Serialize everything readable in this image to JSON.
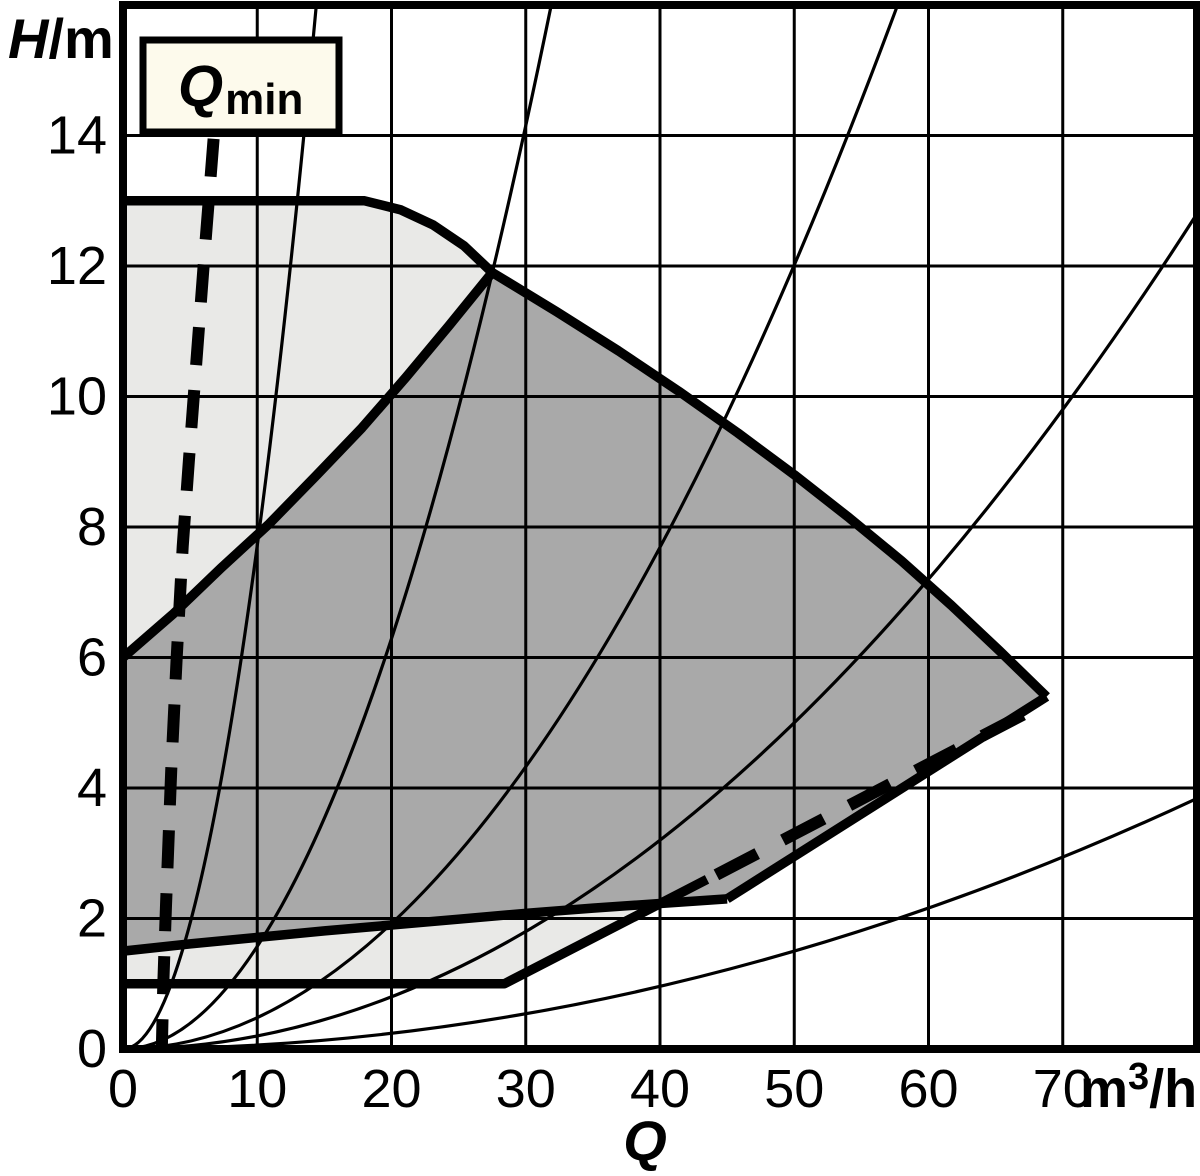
{
  "chart_data": {
    "type": "area",
    "title": "Pump duty chart (head H versus flow Q) with permitted operating regions, Qmin limit line and system curves",
    "labels": {
      "y_main": "H",
      "y_rest": "/m",
      "x": "Q",
      "unit_m": "m",
      "unit_sup": "3",
      "unit_rest": "/h",
      "qmin_main": "Q",
      "qmin_sub": "min"
    },
    "xlim": [
      0,
      80
    ],
    "ylim": [
      0,
      16
    ],
    "x_ticks": [
      0,
      10,
      20,
      30,
      40,
      50,
      60,
      70
    ],
    "y_ticks": [
      0,
      2,
      4,
      6,
      8,
      10,
      12,
      14
    ],
    "grid": "on",
    "colors": {
      "light_region": "#e9e9e7",
      "dark_region": "#a9a9a9",
      "line": "#000000",
      "qmin_box_fill": "#fdfaec",
      "background": "#ffffff"
    },
    "regions": [
      {
        "name": "upper-light-region",
        "fill": "light_region",
        "points": [
          [
            0,
            13
          ],
          [
            18,
            13
          ],
          [
            20.7,
            12.86
          ],
          [
            23.1,
            12.63
          ],
          [
            25.4,
            12.31
          ],
          [
            27.5,
            11.9
          ],
          [
            24.3,
            11.09
          ],
          [
            21.1,
            10.3
          ],
          [
            17.8,
            9.52
          ],
          [
            14.4,
            8.79
          ],
          [
            10.9,
            8.05
          ],
          [
            7.3,
            7.37
          ],
          [
            3.7,
            6.66
          ],
          [
            0,
            6.0
          ]
        ]
      },
      {
        "name": "dark-region",
        "fill": "dark_region",
        "points": [
          [
            0,
            6.0
          ],
          [
            3.7,
            6.66
          ],
          [
            7.3,
            7.37
          ],
          [
            10.9,
            8.05
          ],
          [
            14.4,
            8.79
          ],
          [
            17.8,
            9.52
          ],
          [
            21.1,
            10.3
          ],
          [
            24.3,
            11.09
          ],
          [
            27.5,
            11.9
          ],
          [
            32.3,
            11.3
          ],
          [
            36.9,
            10.7
          ],
          [
            41.4,
            10.08
          ],
          [
            45.8,
            9.44
          ],
          [
            50,
            8.8
          ],
          [
            54.1,
            8.14
          ],
          [
            58,
            7.48
          ],
          [
            61.7,
            6.8
          ],
          [
            65.3,
            6.1
          ],
          [
            68.8,
            5.4
          ],
          [
            45,
            2.3
          ],
          [
            40,
            2.23
          ],
          [
            35,
            2.16
          ],
          [
            30,
            2.08
          ],
          [
            25,
            1.99
          ],
          [
            20,
            1.9
          ],
          [
            15,
            1.81
          ],
          [
            10,
            1.71
          ],
          [
            5,
            1.61
          ],
          [
            0,
            1.5
          ]
        ]
      },
      {
        "name": "lower-light-strip",
        "fill": "light_region",
        "points": [
          [
            0,
            1.5
          ],
          [
            5,
            1.61
          ],
          [
            10,
            1.71
          ],
          [
            15,
            1.81
          ],
          [
            20,
            1.9
          ],
          [
            25,
            1.99
          ],
          [
            30,
            2.08
          ],
          [
            35,
            2.16
          ],
          [
            39.8,
            2.22
          ],
          [
            28.4,
            1
          ],
          [
            0,
            1
          ]
        ]
      }
    ],
    "boundaries": [
      {
        "name": "upper-envelope-top",
        "width": 9.5,
        "points": [
          [
            0,
            13
          ],
          [
            18,
            13
          ],
          [
            20.7,
            12.86
          ],
          [
            23.1,
            12.63
          ],
          [
            25.4,
            12.31
          ],
          [
            27.5,
            11.9
          ]
        ]
      },
      {
        "name": "diagonal-separator",
        "width": 9.5,
        "points": [
          [
            0,
            6.0
          ],
          [
            3.7,
            6.66
          ],
          [
            7.3,
            7.37
          ],
          [
            10.9,
            8.05
          ],
          [
            14.4,
            8.79
          ],
          [
            17.8,
            9.52
          ],
          [
            21.1,
            10.3
          ],
          [
            24.3,
            11.09
          ],
          [
            27.5,
            11.9
          ]
        ]
      },
      {
        "name": "dark-top-curve",
        "width": 9.5,
        "points": [
          [
            27.5,
            11.9
          ],
          [
            32.3,
            11.3
          ],
          [
            36.9,
            10.7
          ],
          [
            41.4,
            10.08
          ],
          [
            45.8,
            9.44
          ],
          [
            50,
            8.8
          ],
          [
            54.1,
            8.14
          ],
          [
            58,
            7.48
          ],
          [
            61.7,
            6.8
          ],
          [
            65.3,
            6.1
          ],
          [
            68.8,
            5.4
          ]
        ]
      },
      {
        "name": "tip-lower-edge",
        "width": 9.5,
        "points": [
          [
            68.8,
            5.4
          ],
          [
            45,
            2.3
          ]
        ]
      },
      {
        "name": "lower-envelope-a",
        "width": 9.5,
        "points": [
          [
            45,
            2.3
          ],
          [
            40,
            2.23
          ],
          [
            35,
            2.16
          ],
          [
            30,
            2.08
          ],
          [
            25,
            1.99
          ],
          [
            20,
            1.9
          ],
          [
            15,
            1.81
          ],
          [
            10,
            1.71
          ],
          [
            5,
            1.61
          ],
          [
            0,
            1.5
          ]
        ]
      },
      {
        "name": "lower-envelope-b",
        "width": 9.5,
        "points": [
          [
            0,
            1
          ],
          [
            28.4,
            1
          ],
          [
            43.5,
            2.6
          ]
        ]
      }
    ],
    "dashed_lines": [
      {
        "name": "qmin-limit-line",
        "width": 12,
        "dash": [
          38,
          25
        ],
        "points": [
          [
            6.75,
            13.95
          ],
          [
            6.0,
            12
          ],
          [
            5.45,
            10.5
          ],
          [
            4.9,
            9
          ],
          [
            4.45,
            7.7
          ],
          [
            4.0,
            6
          ],
          [
            3.6,
            4.3
          ],
          [
            3.2,
            2.2
          ],
          [
            3.0,
            1
          ],
          [
            2.9,
            0.05
          ]
        ]
      },
      {
        "name": "lower-dashed-limit",
        "width": 12,
        "dash": [
          46,
          29
        ],
        "points": [
          [
            44.2,
            2.67
          ],
          [
            68.5,
            5.28
          ]
        ]
      }
    ],
    "system_curves": [
      {
        "name": "system-curve-1",
        "q_end": 14.4,
        "h_end": 16
      },
      {
        "name": "system-curve-2",
        "q_end": 31.9,
        "h_end": 16
      },
      {
        "name": "system-curve-3",
        "q_end": 57.7,
        "h_end": 16
      },
      {
        "name": "system-curve-4",
        "q_end": 80,
        "h_end": 12.8
      },
      {
        "name": "system-curve-5",
        "q_end": 80,
        "h_end": 3.84
      }
    ],
    "qmin_box": {
      "x_q": 1.5,
      "w_q": 14.4,
      "top_h": 15.45,
      "bot_h": 14.1
    }
  }
}
